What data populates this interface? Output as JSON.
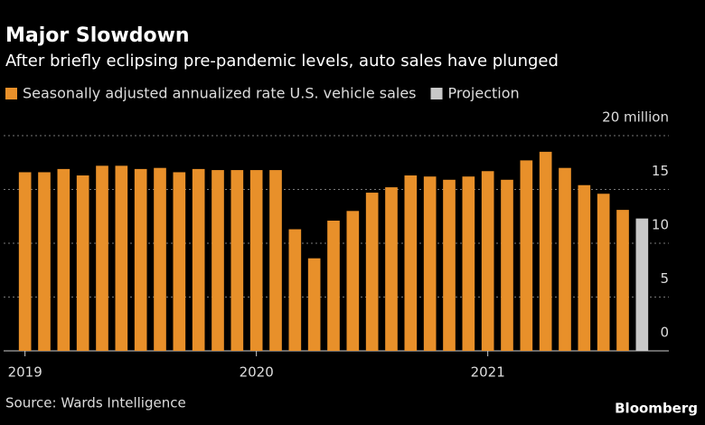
{
  "chart_data": {
    "type": "bar",
    "title": "Major Slowdown",
    "subtitle": "After briefly eclipsing pre-pandemic levels, auto sales have plunged",
    "source": "Source: Wards Intelligence",
    "brand": "Bloomberg",
    "categories": [
      "2019",
      null,
      null,
      null,
      null,
      null,
      null,
      null,
      null,
      null,
      null,
      null,
      "2020",
      null,
      null,
      null,
      null,
      null,
      null,
      null,
      null,
      null,
      null,
      null,
      "2021",
      null,
      null,
      null,
      null,
      null,
      null,
      null,
      null
    ],
    "series": [
      {
        "name": "Seasonally adjusted annualized rate U.S. vehicle sales",
        "color": "#e8902a",
        "values": [
          16.6,
          16.6,
          16.9,
          16.3,
          17.2,
          17.2,
          16.9,
          17.0,
          16.6,
          16.9,
          16.8,
          16.8,
          16.8,
          16.8,
          11.3,
          8.6,
          12.1,
          13.0,
          14.7,
          15.2,
          16.3,
          16.2,
          15.9,
          16.2,
          16.7,
          15.9,
          17.7,
          18.5,
          17.0,
          15.4,
          14.6,
          13.1,
          null
        ]
      },
      {
        "name": "Projection",
        "color": "#c8c8c8",
        "values": [
          null,
          null,
          null,
          null,
          null,
          null,
          null,
          null,
          null,
          null,
          null,
          null,
          null,
          null,
          null,
          null,
          null,
          null,
          null,
          null,
          null,
          null,
          null,
          null,
          null,
          null,
          null,
          null,
          null,
          null,
          null,
          null,
          12.3
        ]
      }
    ],
    "ylim": [
      0,
      20
    ],
    "yticks": [
      0,
      5,
      10,
      15,
      {
        "value": 20,
        "label": "20 million"
      }
    ],
    "grid": true,
    "legend": "top-left"
  }
}
